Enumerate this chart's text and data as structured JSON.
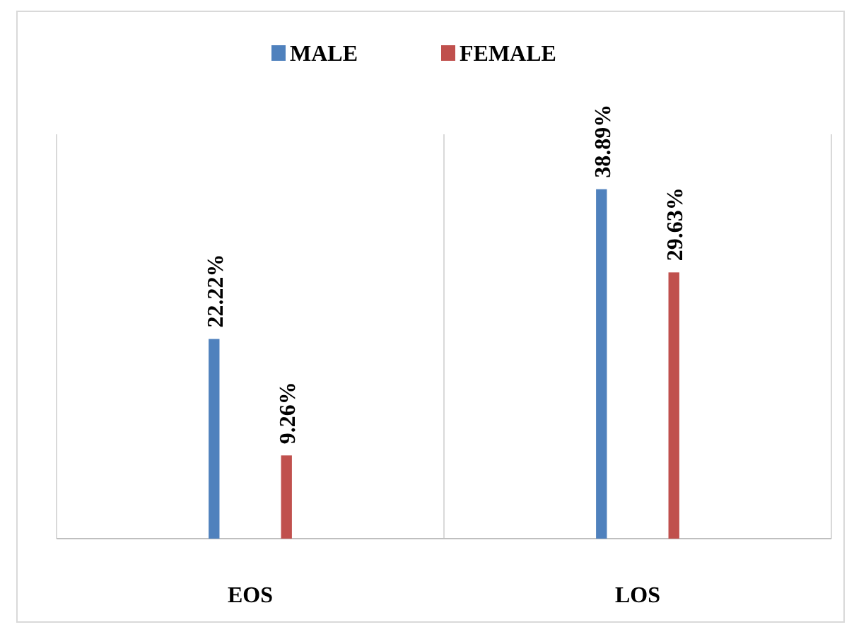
{
  "chart_data": {
    "type": "bar",
    "categories": [
      "EOS",
      "LOS"
    ],
    "series": [
      {
        "name": "MALE",
        "color": "#4f81bd",
        "values": [
          22.22,
          38.89
        ],
        "value_labels": [
          "22.22%",
          "38.89%"
        ]
      },
      {
        "name": "FEMALE",
        "color": "#c0504d",
        "values": [
          9.26,
          29.63
        ],
        "value_labels": [
          "9.26%",
          "29.63%"
        ]
      }
    ],
    "ylim": [
      0,
      45
    ],
    "grid": "x",
    "legend": "top"
  }
}
